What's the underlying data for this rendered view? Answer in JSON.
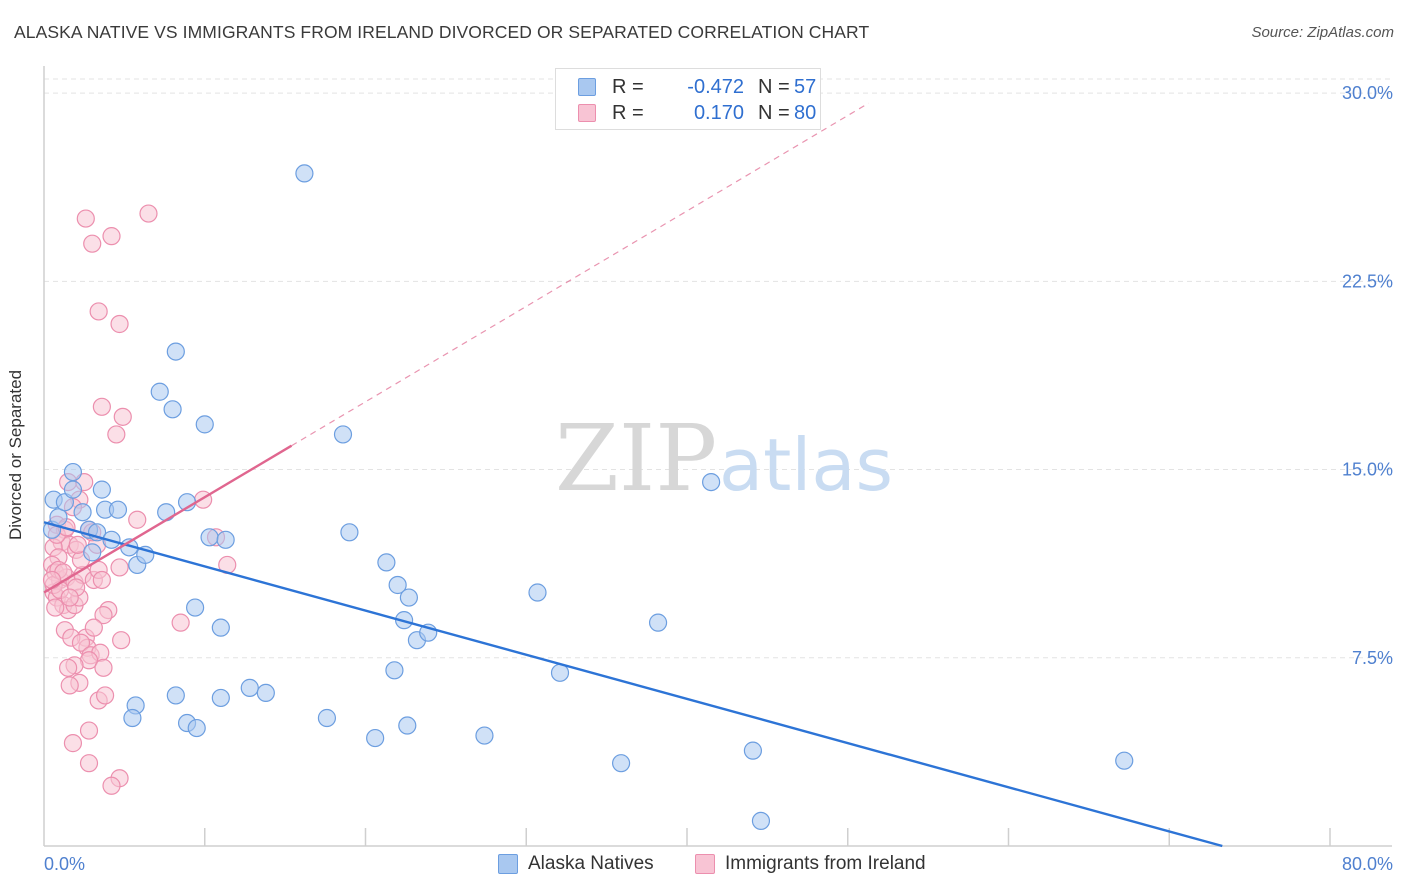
{
  "header": {
    "title": "ALASKA NATIVE VS IMMIGRANTS FROM IRELAND DIVORCED OR SEPARATED CORRELATION CHART",
    "source": "Source: ZipAtlas.com"
  },
  "watermark": {
    "zip": "ZIP",
    "atlas": "atlas"
  },
  "legend_top": {
    "rows": [
      {
        "r_label": "R =",
        "r_value": "-0.472",
        "n_label": "N =",
        "n_value": "57",
        "color": "#a9c8f0",
        "border": "#6c9ee0"
      },
      {
        "r_label": "R =",
        "r_value": "0.170",
        "n_label": "N =",
        "n_value": "80",
        "color": "#f8c4d4",
        "border": "#ec8fae"
      }
    ]
  },
  "legend_bottom": [
    {
      "label": "Alaska Natives",
      "color": "#a9c8f0",
      "border": "#6c9ee0"
    },
    {
      "label": "Immigrants from Ireland",
      "color": "#f8c4d4",
      "border": "#ec8fae"
    }
  ],
  "chart_data": {
    "type": "scatter",
    "title": "ALASKA NATIVE VS IMMIGRANTS FROM IRELAND DIVORCED OR SEPARATED CORRELATION CHART",
    "xlabel": "",
    "ylabel": "Divorced or Separated",
    "xlim": [
      0,
      80
    ],
    "ylim": [
      0,
      31
    ],
    "x_tick_labels": [
      "0.0%",
      "80.0%"
    ],
    "y_ticks": [
      7.5,
      15.0,
      22.5,
      30.0
    ],
    "y_tick_labels": [
      "7.5%",
      "15.0%",
      "22.5%",
      "30.0%"
    ],
    "grid": "horizontal dashed",
    "legend_position": "top-center",
    "series": [
      {
        "name": "Alaska Natives",
        "color": "#6c9ee0",
        "fill": "#a9c8f0",
        "r": -0.472,
        "n": 57,
        "points": [
          [
            0.5,
            12.6
          ],
          [
            0.6,
            13.8
          ],
          [
            0.9,
            13.1
          ],
          [
            1.3,
            13.7
          ],
          [
            1.8,
            14.9
          ],
          [
            1.8,
            14.2
          ],
          [
            2.4,
            13.3
          ],
          [
            2.8,
            12.6
          ],
          [
            3.0,
            11.7
          ],
          [
            3.3,
            12.5
          ],
          [
            3.6,
            14.2
          ],
          [
            3.8,
            13.4
          ],
          [
            4.2,
            12.2
          ],
          [
            4.6,
            13.4
          ],
          [
            5.3,
            11.9
          ],
          [
            5.8,
            11.2
          ],
          [
            6.3,
            11.6
          ],
          [
            7.2,
            18.1
          ],
          [
            7.6,
            13.3
          ],
          [
            8.0,
            17.4
          ],
          [
            8.2,
            19.7
          ],
          [
            8.9,
            13.7
          ],
          [
            10.0,
            16.8
          ],
          [
            10.3,
            12.3
          ],
          [
            11.3,
            12.2
          ],
          [
            16.2,
            26.8
          ],
          [
            18.6,
            16.4
          ],
          [
            19.0,
            12.5
          ],
          [
            21.3,
            11.3
          ],
          [
            22.0,
            10.4
          ],
          [
            22.4,
            9.0
          ],
          [
            22.7,
            9.9
          ],
          [
            23.2,
            8.2
          ],
          [
            23.9,
            8.5
          ],
          [
            11.0,
            8.7
          ],
          [
            9.4,
            9.5
          ],
          [
            8.2,
            6.0
          ],
          [
            5.7,
            5.6
          ],
          [
            5.5,
            5.1
          ],
          [
            8.9,
            4.9
          ],
          [
            9.5,
            4.7
          ],
          [
            11.0,
            5.9
          ],
          [
            12.8,
            6.3
          ],
          [
            13.8,
            6.1
          ],
          [
            17.6,
            5.1
          ],
          [
            20.6,
            4.3
          ],
          [
            21.8,
            7.0
          ],
          [
            22.6,
            4.8
          ],
          [
            27.4,
            4.4
          ],
          [
            30.7,
            10.1
          ],
          [
            32.1,
            6.9
          ],
          [
            35.9,
            3.3
          ],
          [
            38.2,
            8.9
          ],
          [
            41.5,
            14.5
          ],
          [
            44.1,
            3.8
          ],
          [
            44.6,
            1.0
          ],
          [
            67.2,
            3.4
          ]
        ]
      },
      {
        "name": "Immigrants from Ireland",
        "color": "#ec8fae",
        "fill": "#f8c4d4",
        "r": 0.17,
        "n": 80,
        "points": [
          [
            2.6,
            25.0
          ],
          [
            4.2,
            24.3
          ],
          [
            3.0,
            24.0
          ],
          [
            6.5,
            25.2
          ],
          [
            3.4,
            21.3
          ],
          [
            4.7,
            20.8
          ],
          [
            3.6,
            17.5
          ],
          [
            4.9,
            17.1
          ],
          [
            4.5,
            16.4
          ],
          [
            1.5,
            14.5
          ],
          [
            2.5,
            14.5
          ],
          [
            2.2,
            13.8
          ],
          [
            1.8,
            13.5
          ],
          [
            0.8,
            12.8
          ],
          [
            1.3,
            12.6
          ],
          [
            1.1,
            12.1
          ],
          [
            1.6,
            12.0
          ],
          [
            2.0,
            11.8
          ],
          [
            0.6,
            11.9
          ],
          [
            0.9,
            11.5
          ],
          [
            2.8,
            12.6
          ],
          [
            3.3,
            12.0
          ],
          [
            5.8,
            13.0
          ],
          [
            9.9,
            13.8
          ],
          [
            0.5,
            11.2
          ],
          [
            0.7,
            10.9
          ],
          [
            1.0,
            10.6
          ],
          [
            1.4,
            10.7
          ],
          [
            1.9,
            10.5
          ],
          [
            2.4,
            10.8
          ],
          [
            3.1,
            10.6
          ],
          [
            3.4,
            11.0
          ],
          [
            3.6,
            10.6
          ],
          [
            4.7,
            11.1
          ],
          [
            0.6,
            10.1
          ],
          [
            0.8,
            9.9
          ],
          [
            1.2,
            9.6
          ],
          [
            1.5,
            9.4
          ],
          [
            0.7,
            9.5
          ],
          [
            1.9,
            9.6
          ],
          [
            2.2,
            9.9
          ],
          [
            4.0,
            9.4
          ],
          [
            3.7,
            9.2
          ],
          [
            1.3,
            8.6
          ],
          [
            2.6,
            8.3
          ],
          [
            3.1,
            8.7
          ],
          [
            4.8,
            8.2
          ],
          [
            2.7,
            7.9
          ],
          [
            1.7,
            8.3
          ],
          [
            2.3,
            8.1
          ],
          [
            2.9,
            7.6
          ],
          [
            3.5,
            7.7
          ],
          [
            2.8,
            7.4
          ],
          [
            1.9,
            7.2
          ],
          [
            1.5,
            7.1
          ],
          [
            3.7,
            7.1
          ],
          [
            2.2,
            6.5
          ],
          [
            1.6,
            6.4
          ],
          [
            3.4,
            5.8
          ],
          [
            3.8,
            6.0
          ],
          [
            2.8,
            4.6
          ],
          [
            1.8,
            4.1
          ],
          [
            2.8,
            3.3
          ],
          [
            4.7,
            2.7
          ],
          [
            4.2,
            2.4
          ],
          [
            10.7,
            12.3
          ],
          [
            11.4,
            11.2
          ],
          [
            8.5,
            8.9
          ],
          [
            0.6,
            10.4
          ],
          [
            1.0,
            10.2
          ],
          [
            2.0,
            10.3
          ],
          [
            0.9,
            11.0
          ],
          [
            1.2,
            10.9
          ],
          [
            0.5,
            10.6
          ],
          [
            1.6,
            9.9
          ],
          [
            2.3,
            11.4
          ],
          [
            0.8,
            12.4
          ],
          [
            1.4,
            12.7
          ],
          [
            3.0,
            12.5
          ],
          [
            2.1,
            12.0
          ]
        ]
      }
    ],
    "trend_lines": [
      {
        "series": "Alaska Natives",
        "x": [
          0,
          73.3
        ],
        "y": [
          12.9,
          0.0
        ],
        "style": "solid"
      },
      {
        "series": "Immigrants from Ireland",
        "x": [
          0,
          15.4
        ],
        "y": [
          10.1,
          15.95
        ],
        "style": "solid"
      },
      {
        "series": "Immigrants from Ireland",
        "x": [
          15.4,
          51.3
        ],
        "y": [
          15.95,
          29.6
        ],
        "style": "dashed"
      }
    ]
  }
}
